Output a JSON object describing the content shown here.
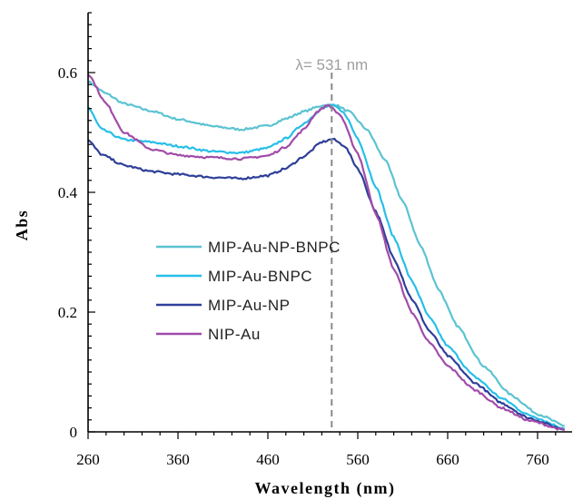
{
  "chart_data": {
    "type": "line",
    "title": "",
    "xlabel": "Wavelength (nm)",
    "ylabel": "Abs",
    "xlim": [
      260,
      790
    ],
    "ylim": [
      0,
      0.7
    ],
    "xticks": [
      260,
      360,
      460,
      560,
      660,
      760
    ],
    "xtick_labels": [
      "260",
      "360",
      "460",
      "560",
      "660",
      "760"
    ],
    "yticks": [
      0,
      0.2,
      0.4,
      0.6
    ],
    "ytick_labels": [
      "0",
      "0.2",
      "0.4",
      "0.6"
    ],
    "grid": false,
    "legend_position": "center-left",
    "annotation": {
      "text": "λ= 531 nm",
      "x": 531
    },
    "series": [
      {
        "name": "MIP-Au-NP-BNPC",
        "color": "#5bc3d1",
        "x": [
          260,
          280,
          300,
          330,
          360,
          400,
          430,
          460,
          480,
          500,
          520,
          535,
          550,
          570,
          590,
          610,
          630,
          650,
          670,
          700,
          730,
          760,
          790
        ],
        "y": [
          0.585,
          0.565,
          0.548,
          0.536,
          0.522,
          0.51,
          0.505,
          0.511,
          0.523,
          0.535,
          0.545,
          0.546,
          0.535,
          0.505,
          0.455,
          0.385,
          0.31,
          0.238,
          0.178,
          0.11,
          0.062,
          0.03,
          0.01
        ]
      },
      {
        "name": "MIP-Au-BNPC",
        "color": "#27bfe8",
        "x": [
          260,
          275,
          300,
          330,
          360,
          400,
          430,
          460,
          480,
          500,
          520,
          532,
          545,
          560,
          580,
          600,
          620,
          640,
          660,
          690,
          720,
          750,
          790
        ],
        "y": [
          0.542,
          0.505,
          0.488,
          0.484,
          0.477,
          0.468,
          0.466,
          0.474,
          0.49,
          0.515,
          0.54,
          0.546,
          0.532,
          0.49,
          0.41,
          0.325,
          0.252,
          0.19,
          0.143,
          0.092,
          0.056,
          0.028,
          0.006
        ]
      },
      {
        "name": "MIP-Au-NP",
        "color": "#2e3f99",
        "x": [
          260,
          275,
          300,
          330,
          360,
          400,
          430,
          460,
          480,
          500,
          520,
          532,
          545,
          560,
          580,
          600,
          620,
          640,
          660,
          690,
          720,
          750,
          790
        ],
        "y": [
          0.487,
          0.463,
          0.445,
          0.435,
          0.43,
          0.425,
          0.423,
          0.428,
          0.44,
          0.46,
          0.484,
          0.489,
          0.478,
          0.44,
          0.368,
          0.29,
          0.222,
          0.168,
          0.127,
          0.082,
          0.048,
          0.023,
          0.004
        ]
      },
      {
        "name": "NIP-Au",
        "color": "#a04ca8",
        "x": [
          260,
          280,
          300,
          330,
          360,
          400,
          430,
          460,
          480,
          500,
          515,
          527,
          540,
          560,
          580,
          600,
          620,
          640,
          660,
          690,
          720,
          750,
          790
        ],
        "y": [
          0.598,
          0.548,
          0.5,
          0.472,
          0.462,
          0.458,
          0.456,
          0.461,
          0.476,
          0.505,
          0.535,
          0.546,
          0.53,
          0.465,
          0.365,
          0.272,
          0.2,
          0.148,
          0.11,
          0.07,
          0.04,
          0.019,
          0.003
        ]
      }
    ]
  }
}
